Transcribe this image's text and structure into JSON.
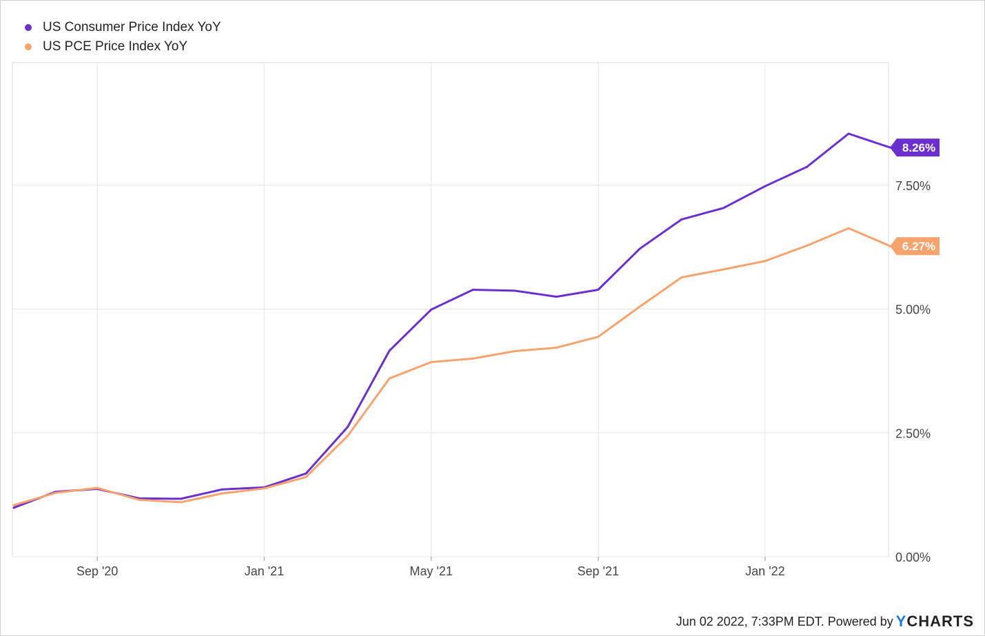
{
  "legend": [
    {
      "label": "US Consumer Price Index YoY",
      "color": "#6b2fcf"
    },
    {
      "label": "US PCE Price Index YoY",
      "color": "#f7a36d"
    }
  ],
  "footer": {
    "text": "Jun 02 2022, 7:33PM EDT. Powered by",
    "logo_y": "Y",
    "logo_rest": "CHARTS"
  },
  "chart_data": {
    "type": "line",
    "x_start": "2020-07",
    "x_ticks": [
      {
        "label": "Sep '20",
        "month": 2
      },
      {
        "label": "Jan '21",
        "month": 6
      },
      {
        "label": "May '21",
        "month": 10
      },
      {
        "label": "Sep '21",
        "month": 14
      },
      {
        "label": "Jan '22",
        "month": 18
      }
    ],
    "y_ticks": [
      {
        "label": "0.00%",
        "value": 0
      },
      {
        "label": "2.50%",
        "value": 2.5
      },
      {
        "label": "5.00%",
        "value": 5
      },
      {
        "label": "7.50%",
        "value": 7.5
      }
    ],
    "ylim": [
      0,
      10
    ],
    "grid": true,
    "y_axis_side": "right",
    "series": [
      {
        "name": "US Consumer Price Index YoY",
        "color": "#6b2fcf",
        "last_label": "8.26%",
        "dates": [
          "2020-07",
          "2020-08",
          "2020-09",
          "2020-10",
          "2020-11",
          "2020-12",
          "2021-01",
          "2021-02",
          "2021-03",
          "2021-04",
          "2021-05",
          "2021-06",
          "2021-07",
          "2021-08",
          "2021-09",
          "2021-10",
          "2021-11",
          "2021-12",
          "2022-01",
          "2022-02",
          "2022-03",
          "2022-04"
        ],
        "values": [
          0.99,
          1.31,
          1.37,
          1.18,
          1.17,
          1.36,
          1.4,
          1.68,
          2.62,
          4.16,
          4.99,
          5.39,
          5.37,
          5.25,
          5.39,
          6.22,
          6.81,
          7.04,
          7.48,
          7.87,
          8.54,
          8.26
        ]
      },
      {
        "name": "US PCE Price Index YoY",
        "color": "#f7a36d",
        "last_label": "6.27%",
        "dates": [
          "2020-07",
          "2020-08",
          "2020-09",
          "2020-10",
          "2020-11",
          "2020-12",
          "2021-01",
          "2021-02",
          "2021-03",
          "2021-04",
          "2021-05",
          "2021-06",
          "2021-07",
          "2021-08",
          "2021-09",
          "2021-10",
          "2021-11",
          "2021-12",
          "2022-01",
          "2022-02",
          "2022-03",
          "2022-04"
        ],
        "values": [
          1.04,
          1.29,
          1.39,
          1.15,
          1.1,
          1.28,
          1.38,
          1.61,
          2.44,
          3.6,
          3.93,
          4.0,
          4.15,
          4.22,
          4.44,
          5.05,
          5.64,
          5.8,
          5.97,
          6.28,
          6.63,
          6.27
        ]
      }
    ]
  }
}
